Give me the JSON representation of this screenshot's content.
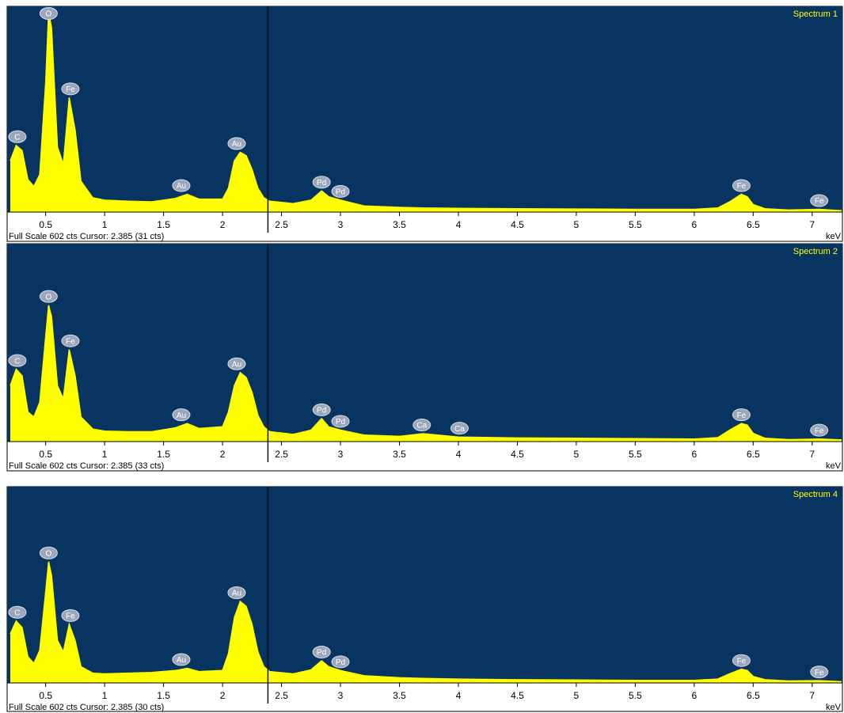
{
  "chart_data": [
    {
      "type": "area",
      "title": "Spectrum 1",
      "x_label": "keV",
      "status": "Full Scale 602 cts Cursor: 2.385  (31 cts)",
      "color": "#ffff00",
      "background": "#083462",
      "cursor": 2.385,
      "xlim": [
        0.18,
        7.25
      ],
      "xticks": [
        0.5,
        1,
        1.5,
        2,
        2.5,
        3,
        3.5,
        4,
        4.5,
        5,
        5.5,
        6,
        6.5,
        7
      ],
      "ylim": [
        0,
        602
      ],
      "x": [
        0.2,
        0.25,
        0.3,
        0.35,
        0.4,
        0.45,
        0.5,
        0.525,
        0.55,
        0.6,
        0.65,
        0.7,
        0.75,
        0.8,
        0.9,
        1.0,
        1.2,
        1.4,
        1.6,
        1.7,
        1.8,
        2.0,
        2.05,
        2.1,
        2.15,
        2.2,
        2.25,
        2.3,
        2.35,
        2.4,
        2.6,
        2.75,
        2.84,
        2.9,
        3.0,
        3.2,
        3.5,
        3.7,
        4.0,
        4.5,
        5.0,
        5.5,
        6.0,
        6.2,
        6.3,
        6.4,
        6.45,
        6.5,
        6.6,
        6.8,
        7.06,
        7.25
      ],
      "values": [
        150,
        195,
        180,
        95,
        75,
        110,
        380,
        585,
        540,
        190,
        140,
        335,
        240,
        90,
        42,
        35,
        32,
        30,
        40,
        52,
        38,
        38,
        70,
        150,
        175,
        165,
        125,
        70,
        42,
        32,
        25,
        35,
        62,
        45,
        35,
        18,
        14,
        12,
        11,
        10,
        9,
        8,
        8,
        12,
        30,
        52,
        45,
        22,
        10,
        6,
        8,
        4
      ],
      "labels": [
        {
          "text": "C",
          "x": 0.26
        },
        {
          "text": "O",
          "x": 0.525
        },
        {
          "text": "Fe",
          "x": 0.71
        },
        {
          "text": "Au",
          "x": 1.65
        },
        {
          "text": "Au",
          "x": 2.12
        },
        {
          "text": "Pd",
          "x": 2.84
        },
        {
          "text": "Pd",
          "x": 3.0
        },
        {
          "text": "Fe",
          "x": 6.4
        },
        {
          "text": "Fe",
          "x": 7.06
        }
      ]
    },
    {
      "type": "area",
      "title": "Spectrum 2",
      "x_label": "keV",
      "status": "Full Scale 602 cts Cursor: 2.385  (33 cts)",
      "color": "#ffff00",
      "background": "#083462",
      "cursor": 2.385,
      "xlim": [
        0.18,
        7.25
      ],
      "xticks": [
        0.5,
        1,
        1.5,
        2,
        2.5,
        3,
        3.5,
        4,
        4.5,
        5,
        5.5,
        6,
        6.5,
        7
      ],
      "ylim": [
        0,
        602
      ],
      "x": [
        0.2,
        0.25,
        0.3,
        0.35,
        0.4,
        0.45,
        0.5,
        0.525,
        0.55,
        0.6,
        0.65,
        0.7,
        0.75,
        0.8,
        0.9,
        1.0,
        1.2,
        1.4,
        1.6,
        1.7,
        1.8,
        2.0,
        2.05,
        2.1,
        2.15,
        2.2,
        2.25,
        2.3,
        2.35,
        2.4,
        2.6,
        2.75,
        2.84,
        2.9,
        3.0,
        3.2,
        3.5,
        3.7,
        4.0,
        4.5,
        5.0,
        5.5,
        6.0,
        6.2,
        6.3,
        6.4,
        6.45,
        6.5,
        6.6,
        6.8,
        7.06,
        7.25
      ],
      "values": [
        170,
        220,
        200,
        90,
        75,
        120,
        320,
        415,
        380,
        170,
        130,
        280,
        200,
        75,
        38,
        32,
        30,
        30,
        42,
        55,
        40,
        45,
        90,
        170,
        210,
        195,
        150,
        80,
        45,
        30,
        22,
        35,
        70,
        45,
        35,
        20,
        16,
        24,
        14,
        11,
        10,
        9,
        8,
        12,
        35,
        55,
        50,
        25,
        10,
        6,
        8,
        5
      ],
      "labels": [
        {
          "text": "C",
          "x": 0.26
        },
        {
          "text": "O",
          "x": 0.525
        },
        {
          "text": "Fe",
          "x": 0.71
        },
        {
          "text": "Au",
          "x": 1.65
        },
        {
          "text": "Au",
          "x": 2.12
        },
        {
          "text": "Pd",
          "x": 2.84
        },
        {
          "text": "Pd",
          "x": 3.0
        },
        {
          "text": "Ca",
          "x": 3.69
        },
        {
          "text": "Ca",
          "x": 4.01
        },
        {
          "text": "Fe",
          "x": 6.4
        },
        {
          "text": "Fe",
          "x": 7.06
        }
      ]
    },
    {
      "type": "area",
      "title": "Spectrum 4",
      "x_label": "keV",
      "status": "Full Scale 602 cts Cursor: 2.385  (30 cts)",
      "color": "#ffff00",
      "background": "#083462",
      "cursor": 2.385,
      "xlim": [
        0.18,
        7.25
      ],
      "xticks": [
        0.5,
        1,
        1.5,
        2,
        2.5,
        3,
        3.5,
        4,
        4.5,
        5,
        5.5,
        6,
        6.5,
        7
      ],
      "ylim": [
        0,
        602
      ],
      "x": [
        0.2,
        0.25,
        0.3,
        0.35,
        0.4,
        0.45,
        0.5,
        0.525,
        0.55,
        0.6,
        0.65,
        0.7,
        0.75,
        0.8,
        0.9,
        1.0,
        1.2,
        1.4,
        1.6,
        1.7,
        1.8,
        2.0,
        2.05,
        2.1,
        2.15,
        2.2,
        2.25,
        2.3,
        2.35,
        2.4,
        2.6,
        2.75,
        2.84,
        2.9,
        3.0,
        3.2,
        3.5,
        3.7,
        4.0,
        4.5,
        5.0,
        5.5,
        6.0,
        6.2,
        6.3,
        6.4,
        6.45,
        6.5,
        6.6,
        6.8,
        7.06,
        7.25
      ],
      "values": [
        150,
        190,
        170,
        80,
        60,
        100,
        280,
        372,
        330,
        130,
        95,
        180,
        130,
        50,
        30,
        28,
        30,
        32,
        38,
        45,
        35,
        38,
        90,
        200,
        250,
        235,
        180,
        95,
        50,
        35,
        28,
        40,
        68,
        50,
        38,
        22,
        16,
        14,
        12,
        10,
        9,
        8,
        8,
        12,
        28,
        42,
        38,
        20,
        10,
        6,
        7,
        4
      ],
      "labels": [
        {
          "text": "C",
          "x": 0.26
        },
        {
          "text": "O",
          "x": 0.525
        },
        {
          "text": "Fe",
          "x": 0.71
        },
        {
          "text": "Au",
          "x": 1.65
        },
        {
          "text": "Au",
          "x": 2.12
        },
        {
          "text": "Pd",
          "x": 2.84
        },
        {
          "text": "Pd",
          "x": 3.0
        },
        {
          "text": "Fe",
          "x": 6.4
        },
        {
          "text": "Fe",
          "x": 7.06
        }
      ]
    }
  ]
}
